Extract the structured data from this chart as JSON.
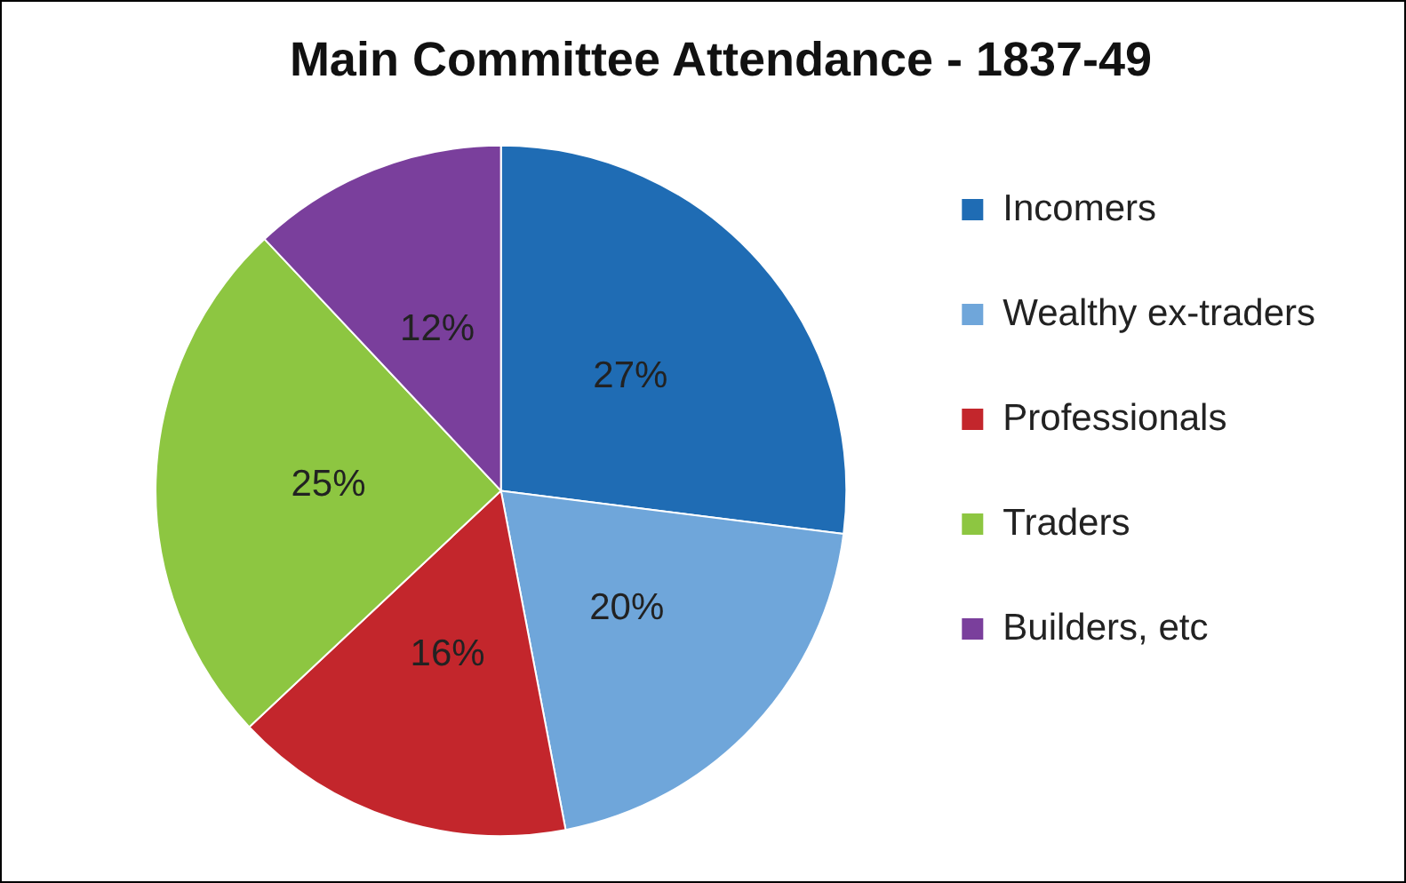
{
  "chart_data": {
    "type": "pie",
    "title": "Main Committee Attendance - 1837-49",
    "categories": [
      "Incomers",
      "Wealthy ex-traders",
      "Professionals",
      "Traders",
      "Builders, etc"
    ],
    "values": [
      27,
      20,
      16,
      25,
      12
    ],
    "value_labels": [
      "27%",
      "20%",
      "16%",
      "25%",
      "12%"
    ],
    "colors": [
      "#1f6cb4",
      "#6fa6da",
      "#c3262c",
      "#8dc641",
      "#7a3f9c"
    ],
    "legend": "right"
  }
}
